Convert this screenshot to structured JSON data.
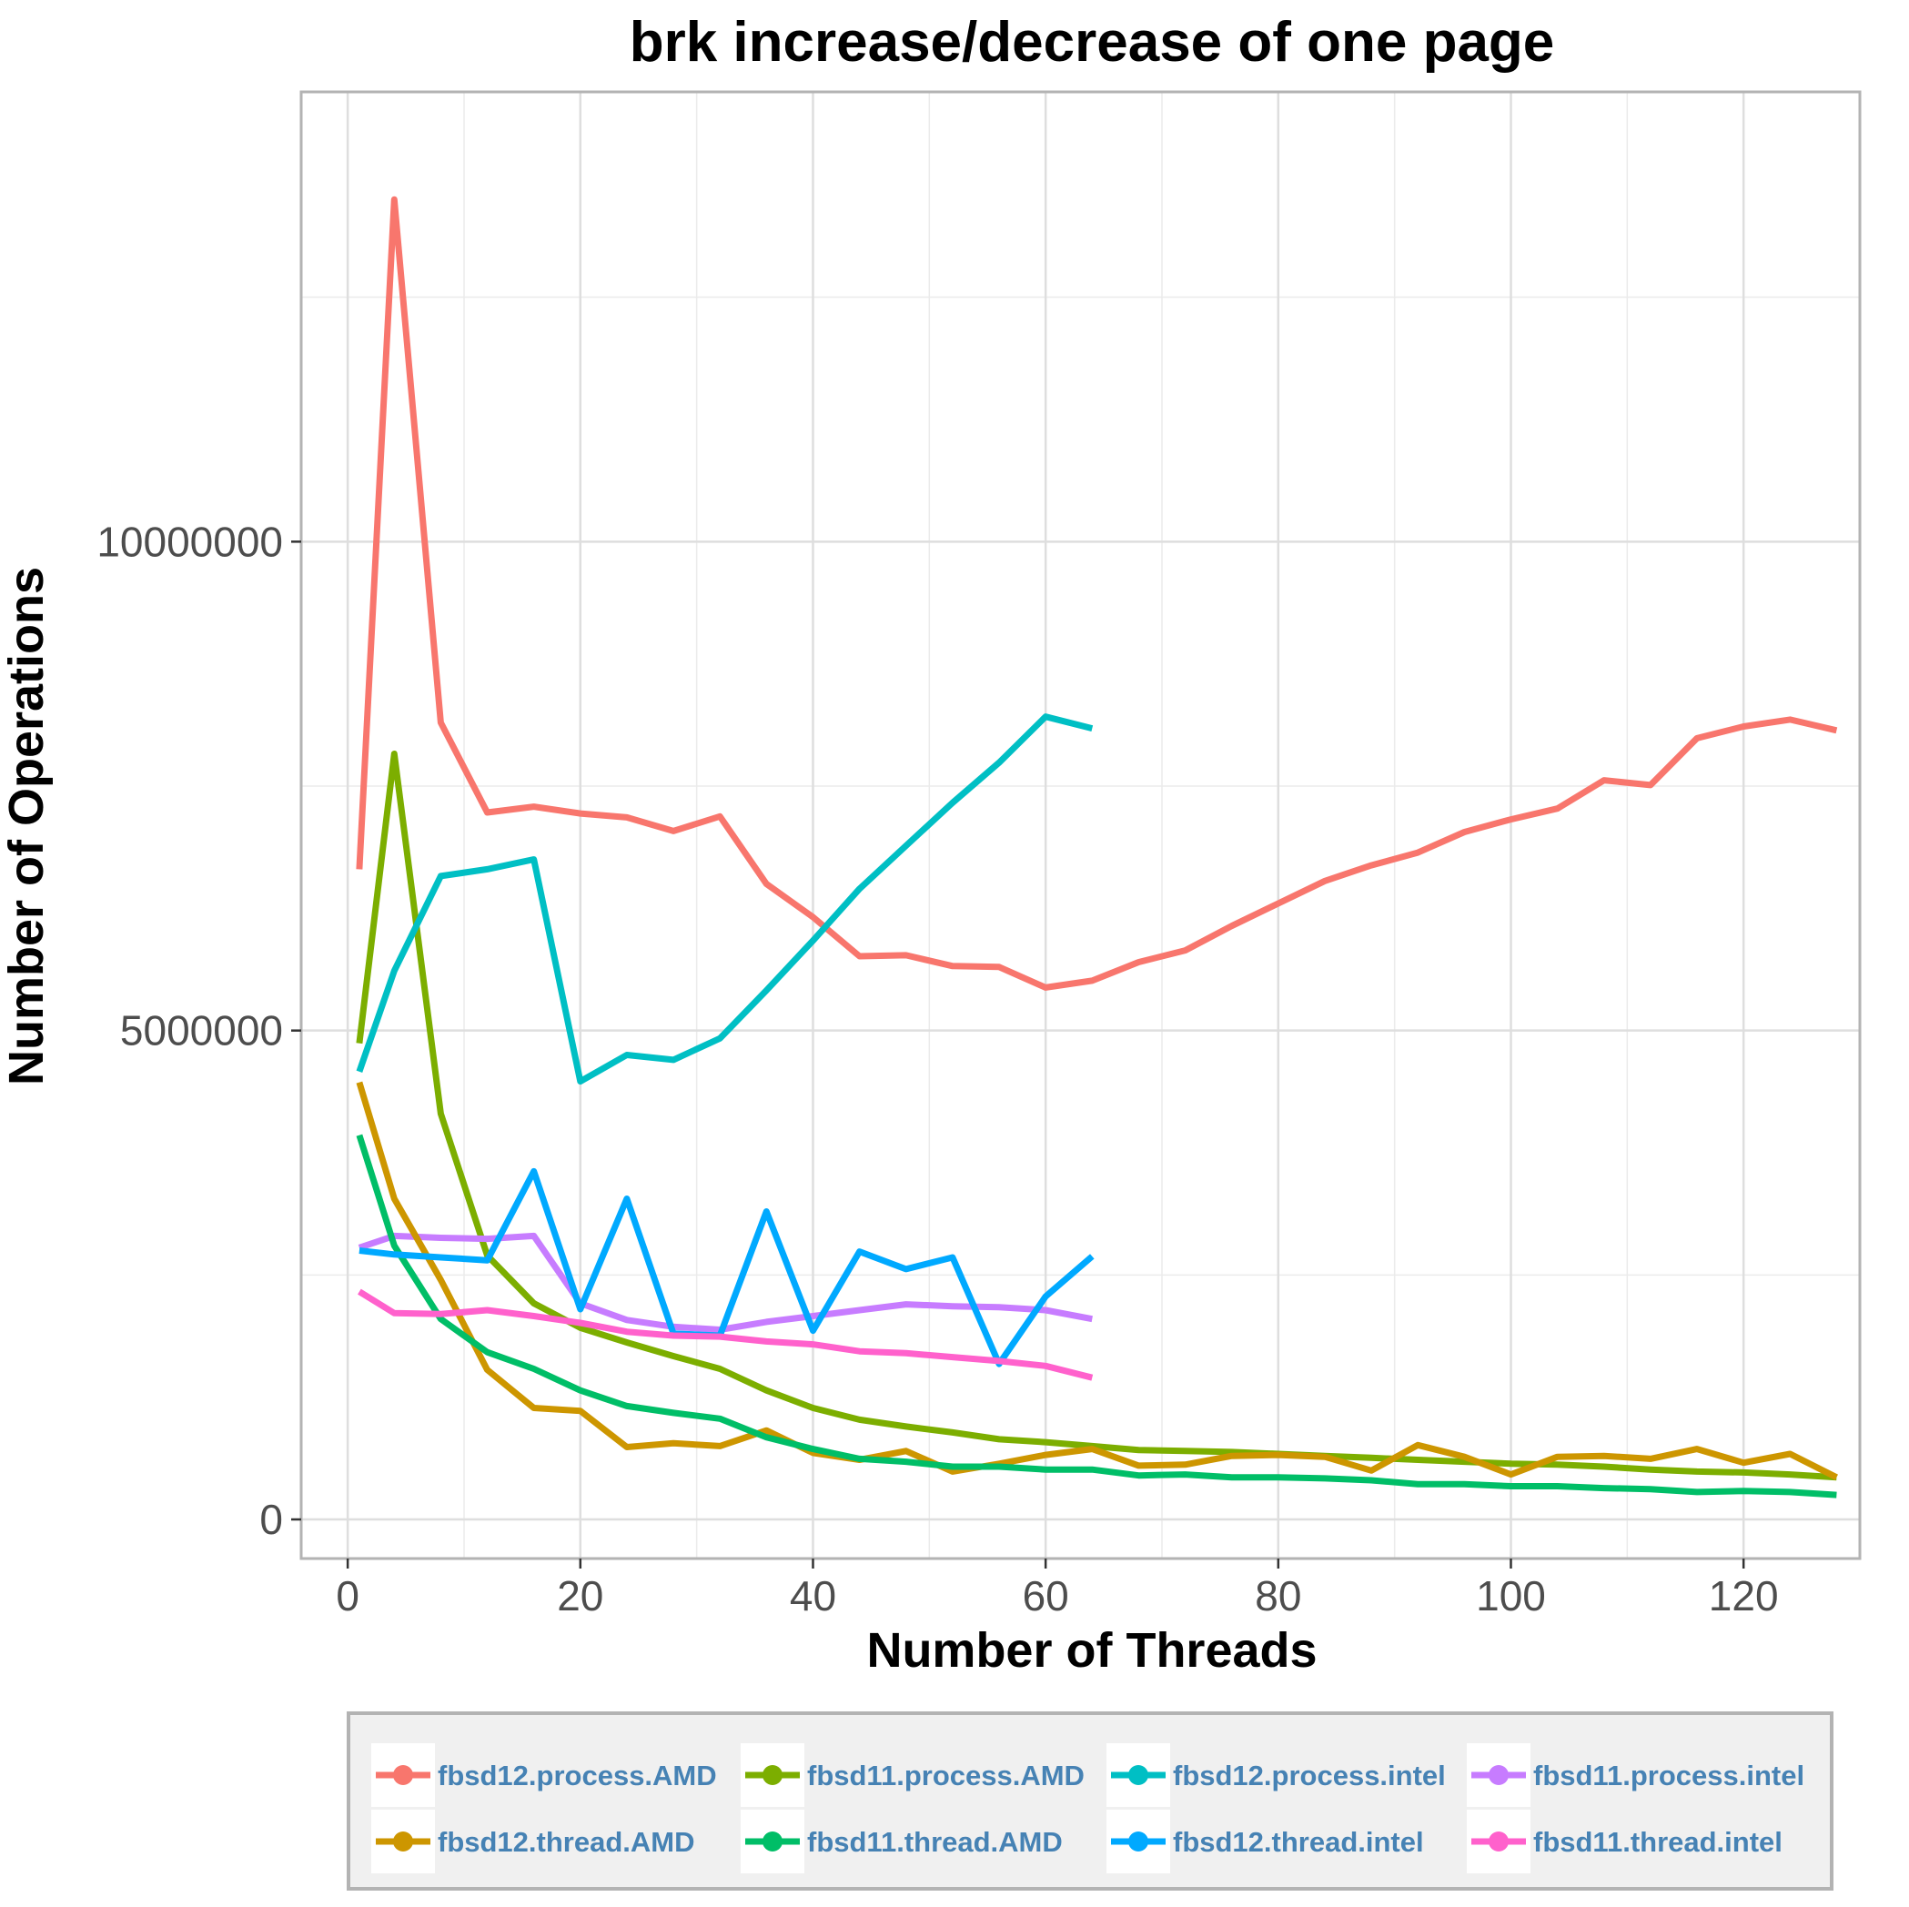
{
  "chart_data": {
    "type": "line",
    "title": "brk increase/decrease of one page",
    "xlabel": "Number of Threads",
    "ylabel": "Number of Operations",
    "xlim": [
      -4,
      130
    ],
    "ylim": [
      -400000,
      14600000
    ],
    "x_ticks": [
      0,
      20,
      40,
      60,
      80,
      100,
      120
    ],
    "y_ticks": [
      0,
      5000000,
      10000000
    ],
    "y_tick_labels": [
      "0",
      "5000000",
      "10000000"
    ],
    "grid": true,
    "legend_position": "bottom",
    "series": [
      {
        "name": "fbsd12.process.AMD",
        "color": "#F8766D",
        "x": [
          1,
          4,
          8,
          12,
          16,
          20,
          24,
          28,
          32,
          36,
          40,
          44,
          48,
          52,
          56,
          60,
          64,
          68,
          72,
          76,
          80,
          84,
          88,
          92,
          96,
          100,
          104,
          108,
          112,
          116,
          120,
          124,
          128
        ],
        "y": [
          6650000,
          13500000,
          8150000,
          7230000,
          7290000,
          7220000,
          7180000,
          7040000,
          7190000,
          6500000,
          6160000,
          5760000,
          5770000,
          5660000,
          5650000,
          5440000,
          5510000,
          5700000,
          5820000,
          6070000,
          6300000,
          6530000,
          6690000,
          6820000,
          7030000,
          7160000,
          7270000,
          7560000,
          7510000,
          7990000,
          8110000,
          8180000,
          8070000
        ]
      },
      {
        "name": "fbsd11.process.AMD",
        "color": "#7CAE00",
        "x": [
          1,
          4,
          8,
          12,
          16,
          20,
          24,
          28,
          32,
          36,
          40,
          44,
          48,
          52,
          56,
          60,
          64,
          68,
          72,
          76,
          80,
          84,
          88,
          92,
          96,
          100,
          104,
          108,
          112,
          116,
          120,
          124,
          128
        ],
        "y": [
          4870000,
          7830000,
          4150000,
          2700000,
          2210000,
          1960000,
          1810000,
          1670000,
          1540000,
          1320000,
          1140000,
          1020000,
          950000,
          890000,
          820000,
          790000,
          750000,
          710000,
          700000,
          690000,
          670000,
          650000,
          630000,
          610000,
          590000,
          570000,
          560000,
          540000,
          510000,
          490000,
          480000,
          460000,
          430000
        ]
      },
      {
        "name": "fbsd12.process.intel",
        "color": "#00BFC4",
        "x": [
          1,
          4,
          8,
          12,
          16,
          20,
          24,
          28,
          32,
          36,
          40,
          44,
          48,
          52,
          56,
          60,
          64
        ],
        "y": [
          4580000,
          5610000,
          6580000,
          6650000,
          6750000,
          4480000,
          4750000,
          4700000,
          4920000,
          5410000,
          5920000,
          6450000,
          6890000,
          7330000,
          7740000,
          8210000,
          8090000
        ]
      },
      {
        "name": "fbsd11.process.intel",
        "color": "#C77CFF",
        "x": [
          1,
          4,
          8,
          12,
          16,
          20,
          24,
          28,
          32,
          36,
          40,
          44,
          48,
          52,
          56,
          60,
          64
        ],
        "y": [
          2780000,
          2900000,
          2880000,
          2870000,
          2900000,
          2210000,
          2040000,
          1970000,
          1940000,
          2020000,
          2080000,
          2140000,
          2200000,
          2180000,
          2170000,
          2140000,
          2050000
        ]
      },
      {
        "name": "fbsd12.thread.AMD",
        "color": "#CD9600",
        "x": [
          1,
          4,
          8,
          12,
          16,
          20,
          24,
          28,
          32,
          36,
          40,
          44,
          48,
          52,
          56,
          60,
          64,
          68,
          72,
          76,
          80,
          84,
          88,
          92,
          96,
          100,
          104,
          108,
          112,
          116,
          120,
          124,
          128
        ],
        "y": [
          4470000,
          3280000,
          2450000,
          1530000,
          1140000,
          1110000,
          740000,
          780000,
          750000,
          910000,
          680000,
          610000,
          700000,
          490000,
          570000,
          660000,
          720000,
          550000,
          560000,
          650000,
          660000,
          640000,
          500000,
          760000,
          640000,
          460000,
          640000,
          650000,
          620000,
          720000,
          580000,
          670000,
          430000
        ]
      },
      {
        "name": "fbsd11.thread.AMD",
        "color": "#00BE67",
        "x": [
          1,
          4,
          8,
          12,
          16,
          20,
          24,
          28,
          32,
          36,
          40,
          44,
          48,
          52,
          56,
          60,
          64,
          68,
          72,
          76,
          80,
          84,
          88,
          92,
          96,
          100,
          104,
          108,
          112,
          116,
          120,
          124,
          128
        ],
        "y": [
          3930000,
          2800000,
          2050000,
          1710000,
          1540000,
          1320000,
          1160000,
          1090000,
          1030000,
          840000,
          720000,
          620000,
          590000,
          540000,
          540000,
          510000,
          510000,
          450000,
          460000,
          430000,
          430000,
          420000,
          400000,
          360000,
          360000,
          340000,
          340000,
          320000,
          310000,
          280000,
          290000,
          280000,
          250000
        ]
      },
      {
        "name": "fbsd12.thread.intel",
        "color": "#00A9FF",
        "x": [
          1,
          4,
          8,
          12,
          16,
          20,
          24,
          28,
          32,
          36,
          40,
          44,
          48,
          52,
          56,
          60,
          64
        ],
        "y": [
          2750000,
          2710000,
          2680000,
          2650000,
          3560000,
          2150000,
          3280000,
          1900000,
          1880000,
          3150000,
          1930000,
          2740000,
          2560000,
          2680000,
          1590000,
          2280000,
          2690000
        ]
      },
      {
        "name": "fbsd11.thread.intel",
        "color": "#FF61CC",
        "x": [
          1,
          4,
          8,
          12,
          16,
          20,
          24,
          28,
          32,
          36,
          40,
          44,
          48,
          52,
          56,
          60,
          64
        ],
        "y": [
          2330000,
          2110000,
          2100000,
          2140000,
          2080000,
          2010000,
          1920000,
          1880000,
          1870000,
          1820000,
          1790000,
          1720000,
          1700000,
          1660000,
          1620000,
          1570000,
          1450000
        ]
      }
    ]
  }
}
